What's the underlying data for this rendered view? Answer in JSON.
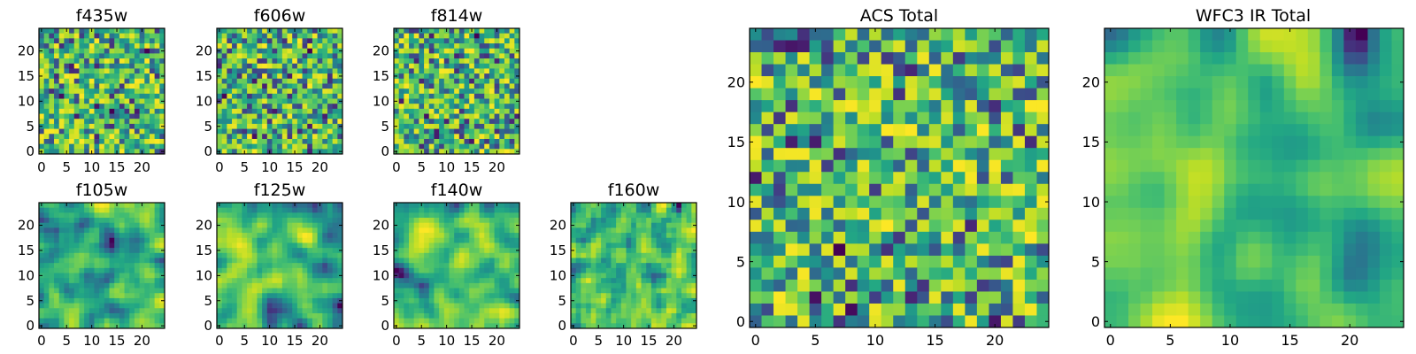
{
  "chart_data": [
    {
      "type": "heatmap",
      "title": "f435w",
      "x_ticks": [
        "0",
        "5",
        "10",
        "15",
        "20"
      ],
      "y_ticks": [
        "0",
        "5",
        "10",
        "15",
        "20"
      ],
      "xlim": [
        -0.5,
        24.5
      ],
      "ylim": [
        -0.5,
        24.5
      ],
      "grid_size": [
        25,
        25
      ],
      "colormap": "viridis",
      "smooth": 0.0,
      "seed": 11
    },
    {
      "type": "heatmap",
      "title": "f606w",
      "x_ticks": [
        "0",
        "5",
        "10",
        "15",
        "20"
      ],
      "y_ticks": [
        "0",
        "5",
        "10",
        "15",
        "20"
      ],
      "xlim": [
        -0.5,
        24.5
      ],
      "ylim": [
        -0.5,
        24.5
      ],
      "grid_size": [
        25,
        25
      ],
      "colormap": "viridis",
      "smooth": 0.0,
      "seed": 23
    },
    {
      "type": "heatmap",
      "title": "f814w",
      "x_ticks": [
        "0",
        "5",
        "10",
        "15",
        "20"
      ],
      "y_ticks": [
        "0",
        "5",
        "10",
        "15",
        "20"
      ],
      "xlim": [
        -0.5,
        24.5
      ],
      "ylim": [
        -0.5,
        24.5
      ],
      "grid_size": [
        25,
        25
      ],
      "colormap": "viridis",
      "smooth": 0.0,
      "seed": 37
    },
    {
      "type": "heatmap",
      "title": "f105w",
      "x_ticks": [
        "0",
        "5",
        "10",
        "15",
        "20"
      ],
      "y_ticks": [
        "0",
        "5",
        "10",
        "15",
        "20"
      ],
      "xlim": [
        -0.5,
        24.5
      ],
      "ylim": [
        -0.5,
        24.5
      ],
      "grid_size": [
        25,
        25
      ],
      "colormap": "viridis",
      "smooth": 2,
      "seed": 41
    },
    {
      "type": "heatmap",
      "title": "f125w",
      "x_ticks": [
        "0",
        "5",
        "10",
        "15",
        "20"
      ],
      "y_ticks": [
        "0",
        "5",
        "10",
        "15",
        "20"
      ],
      "xlim": [
        -0.5,
        24.5
      ],
      "ylim": [
        -0.5,
        24.5
      ],
      "grid_size": [
        25,
        25
      ],
      "colormap": "viridis",
      "smooth": 2,
      "seed": 53
    },
    {
      "type": "heatmap",
      "title": "f140w",
      "x_ticks": [
        "0",
        "5",
        "10",
        "15",
        "20"
      ],
      "y_ticks": [
        "0",
        "5",
        "10",
        "15",
        "20"
      ],
      "xlim": [
        -0.5,
        24.5
      ],
      "ylim": [
        -0.5,
        24.5
      ],
      "grid_size": [
        25,
        25
      ],
      "colormap": "viridis",
      "smooth": 2,
      "seed": 67
    },
    {
      "type": "heatmap",
      "title": "f160w",
      "x_ticks": [
        "0",
        "5",
        "10",
        "15",
        "20"
      ],
      "y_ticks": [
        "0",
        "5",
        "10",
        "15",
        "20"
      ],
      "xlim": [
        -0.5,
        24.5
      ],
      "ylim": [
        -0.5,
        24.5
      ],
      "grid_size": [
        25,
        25
      ],
      "colormap": "viridis",
      "smooth": 1,
      "seed": 79
    },
    {
      "type": "heatmap",
      "title": "ACS Total",
      "x_ticks": [
        "0",
        "5",
        "10",
        "15",
        "20"
      ],
      "y_ticks": [
        "0",
        "5",
        "10",
        "15",
        "20"
      ],
      "xlim": [
        -0.5,
        24.5
      ],
      "ylim": [
        -0.5,
        24.5
      ],
      "grid_size": [
        25,
        25
      ],
      "colormap": "viridis",
      "smooth": 0.0,
      "seed": 97
    },
    {
      "type": "heatmap",
      "title": "WFC3 IR Total",
      "x_ticks": [
        "0",
        "5",
        "10",
        "15",
        "20"
      ],
      "y_ticks": [
        "0",
        "5",
        "10",
        "15",
        "20"
      ],
      "xlim": [
        -0.5,
        24.5
      ],
      "ylim": [
        -0.5,
        24.5
      ],
      "grid_size": [
        25,
        25
      ],
      "colormap": "viridis",
      "smooth": 3,
      "seed": 131
    }
  ]
}
